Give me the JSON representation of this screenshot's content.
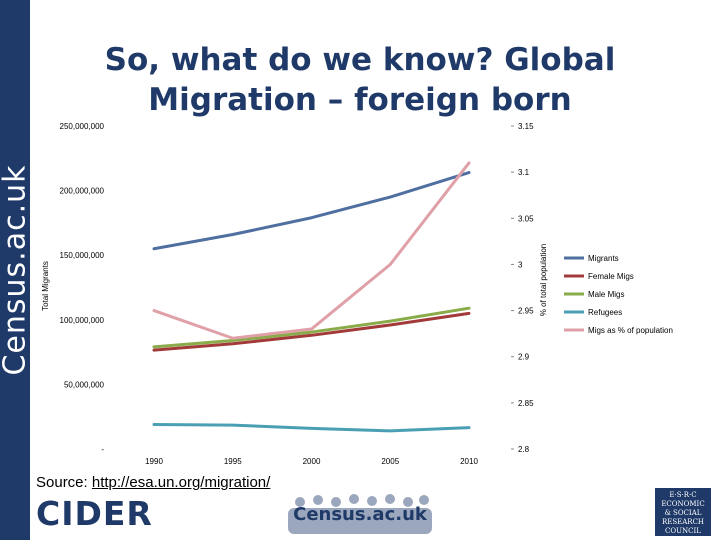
{
  "brand": {
    "sidebar_text": "Census.ac.uk",
    "accent": "#1f3a68"
  },
  "title": "So, what do we know? Global Migration – foreign born",
  "source": {
    "prefix": "Source: ",
    "link": "http://esa.un.org/migration/"
  },
  "logos": {
    "cider": "CIDER",
    "census": "Census.ac.uk",
    "esrc": [
      "E·S·R·C",
      "ECONOMIC",
      "& SOCIAL",
      "RESEARCH",
      "COUNCIL"
    ]
  },
  "chart_data": {
    "type": "line",
    "categories": [
      "1990",
      "1995",
      "2000",
      "2005",
      "2010"
    ],
    "ylabel": "Total Migrants",
    "y2label": "% of total population",
    "ylim": [
      0,
      250000000
    ],
    "y2lim": [
      2.8,
      3.15
    ],
    "y_ticks": [
      "-",
      "50,000,000",
      "100,000,000",
      "150,000,000",
      "200,000,000",
      "250,000,000"
    ],
    "y2_ticks": [
      "2.8",
      "2.85",
      "2.9",
      "2.95",
      "3",
      "3.05",
      "3.1",
      "3.15"
    ],
    "legend_position": "right",
    "series": [
      {
        "name": "Migrants",
        "axis": "left",
        "color": "#4f6fa0",
        "values": [
          155000000,
          166000000,
          179000000,
          195000000,
          214000000
        ]
      },
      {
        "name": "Female Migs",
        "axis": "left",
        "color": "#a33a3a",
        "values": [
          76500000,
          81500000,
          88000000,
          96000000,
          105000000
        ]
      },
      {
        "name": "Male Migs",
        "axis": "left",
        "color": "#8aab4a",
        "values": [
          79000000,
          84000000,
          90500000,
          99000000,
          109000000
        ]
      },
      {
        "name": "Refugees",
        "axis": "left",
        "color": "#4a9fb5",
        "values": [
          19000000,
          18500000,
          16000000,
          14000000,
          16500000
        ]
      },
      {
        "name": "Migs as % of population",
        "axis": "right",
        "color": "#e0a0a8",
        "values": [
          2.95,
          2.92,
          2.93,
          3.0,
          3.11
        ]
      }
    ]
  }
}
